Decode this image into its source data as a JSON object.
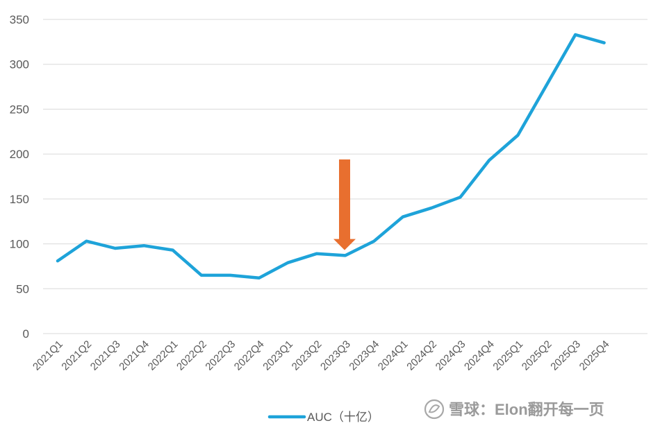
{
  "chart_data": {
    "type": "line",
    "x": [
      "2021Q1",
      "2021Q2",
      "2021Q3",
      "2021Q4",
      "2022Q1",
      "2022Q2",
      "2022Q3",
      "2022Q4",
      "2023Q1",
      "2023Q2",
      "2023Q3",
      "2023Q4",
      "2024Q1",
      "2024Q2",
      "2024Q3",
      "2024Q4",
      "2025Q1",
      "2025Q2",
      "2025Q3",
      "2025Q4"
    ],
    "series": [
      {
        "name": "AUC（十亿）",
        "color": "#1ea3d9",
        "values": [
          81,
          103,
          95,
          98,
          93,
          65,
          65,
          62,
          79,
          89,
          87,
          103,
          130,
          140,
          152,
          193,
          221,
          277,
          333,
          324
        ]
      }
    ],
    "ylim": [
      0,
      350
    ],
    "yticks": [
      0,
      50,
      100,
      150,
      200,
      250,
      300,
      350
    ],
    "grid": true,
    "legend": "bottom",
    "annotations": [
      {
        "type": "arrow",
        "direction": "down",
        "at_x": "2023Q3",
        "from_y": 194,
        "to_y": 93,
        "color": "#e86f2f"
      }
    ]
  },
  "watermark": {
    "text": "雪球：Elon翻开每一页",
    "icon": "xueqiu-logo-icon"
  }
}
